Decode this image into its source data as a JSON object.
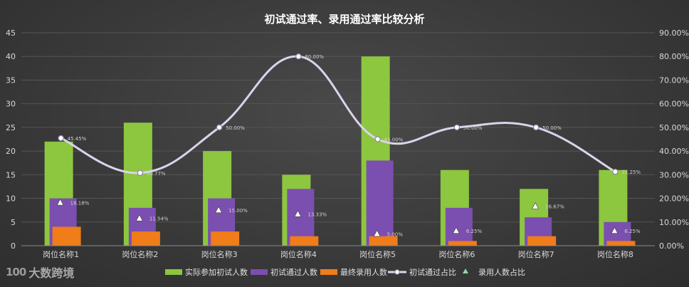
{
  "chart_data": {
    "type": "bar",
    "title": "初试通过率、录用通过率比较分析",
    "categories": [
      "岗位名称1",
      "岗位名称2",
      "岗位名称3",
      "岗位名称4",
      "岗位名称5",
      "岗位名称6",
      "岗位名称7",
      "岗位名称8"
    ],
    "y_left": {
      "min": 0,
      "max": 45,
      "step": 5
    },
    "y_right": {
      "min": 0,
      "max": 0.9,
      "step": 0.1,
      "format": "percent"
    },
    "series": [
      {
        "name": "实际参加初试人数",
        "type": "bar",
        "axis": "left",
        "color": "#8dc63f",
        "values": [
          22,
          26,
          20,
          15,
          40,
          16,
          12,
          16
        ]
      },
      {
        "name": "初试通过人数",
        "type": "bar",
        "axis": "left",
        "color": "#7b4fb0",
        "values": [
          10,
          8,
          10,
          12,
          18,
          8,
          6,
          5
        ]
      },
      {
        "name": "最终录用人数",
        "type": "bar",
        "axis": "left",
        "color": "#f07c1a",
        "values": [
          4,
          3,
          3,
          2,
          2,
          1,
          2,
          1
        ]
      },
      {
        "name": "初试通过占比",
        "type": "line",
        "axis": "right",
        "color": "#d9d4ec",
        "values": [
          0.4545,
          0.3077,
          0.5,
          0.8,
          0.45,
          0.5,
          0.5,
          0.3125
        ],
        "labels": [
          "45.45%",
          "30.77%",
          "50.00%",
          "80.00%",
          "45.00%",
          "50.00%",
          "50.00%",
          "31.25%"
        ]
      },
      {
        "name": "录用人数占比",
        "type": "scatter",
        "axis": "right",
        "color": "#ffffff",
        "values": [
          0.1818,
          0.1154,
          0.15,
          0.1333,
          0.05,
          0.0625,
          0.1667,
          0.0625
        ],
        "labels": [
          "18.18%",
          "11.54%",
          "15.00%",
          "13.33%",
          "5.00%",
          "6.25%",
          "16.67%",
          "6.25%"
        ]
      }
    ],
    "grid": true,
    "legend": "bottom"
  },
  "watermark": {
    "mark": "100",
    "text": "大数跨境"
  }
}
